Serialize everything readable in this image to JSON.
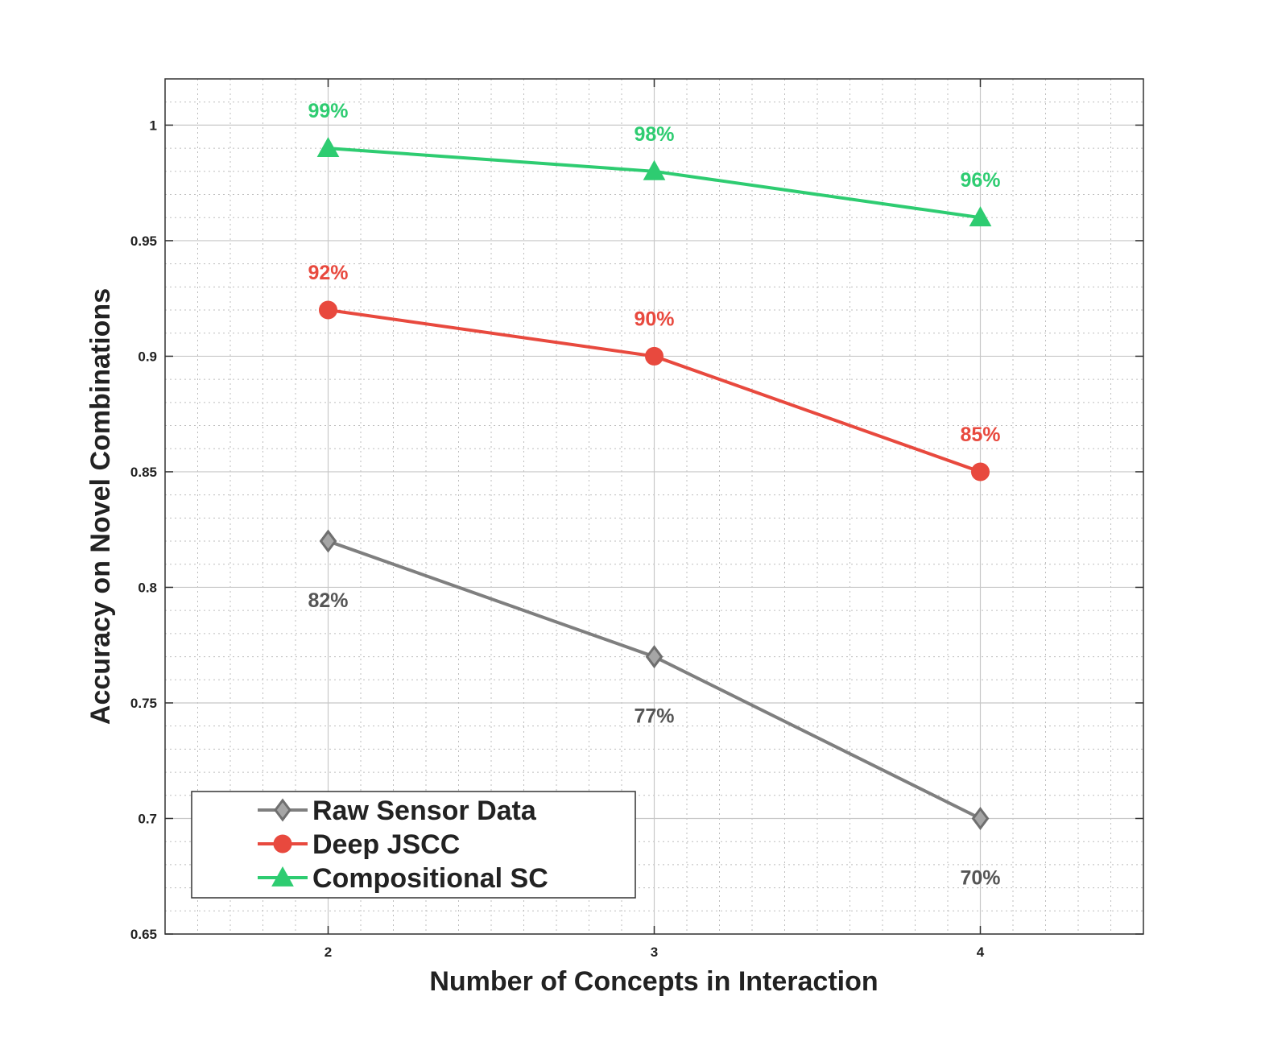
{
  "chart_data": {
    "type": "line",
    "title": "",
    "xlabel": "Number of Concepts in Interaction",
    "ylabel": "Accuracy on Novel Combinations",
    "x": [
      2,
      3,
      4
    ],
    "xlim": [
      1.5,
      4.5
    ],
    "ylim": [
      0.65,
      1.02
    ],
    "xticks": [
      2,
      3,
      4
    ],
    "yticks": [
      0.65,
      0.7,
      0.75,
      0.8,
      0.85,
      0.9,
      0.95,
      1
    ],
    "xtick_labels": [
      "2",
      "3",
      "4"
    ],
    "ytick_labels": [
      "0.65",
      "0.7",
      "0.75",
      "0.8",
      "0.85",
      "0.9",
      "0.95",
      "1"
    ],
    "grid": true,
    "minor_grid": true,
    "legend_position": "bottom-left",
    "series": [
      {
        "name": "Raw Sensor Data",
        "values": [
          0.82,
          0.77,
          0.7
        ],
        "labels": [
          "82%",
          "77%",
          "70%"
        ],
        "color": "#7f7f7f",
        "label_color": "#555555",
        "marker": "diamond",
        "label_position": "below"
      },
      {
        "name": "Deep JSCC",
        "values": [
          0.92,
          0.9,
          0.85
        ],
        "labels": [
          "92%",
          "90%",
          "85%"
        ],
        "color": "#e8493e",
        "label_color": "#e8493e",
        "marker": "circle",
        "label_position": "above"
      },
      {
        "name": "Compositional SC",
        "values": [
          0.99,
          0.98,
          0.96
        ],
        "labels": [
          "99%",
          "98%",
          "96%"
        ],
        "color": "#2ecc71",
        "label_color": "#2ecc71",
        "marker": "triangle",
        "label_position": "above"
      }
    ]
  }
}
